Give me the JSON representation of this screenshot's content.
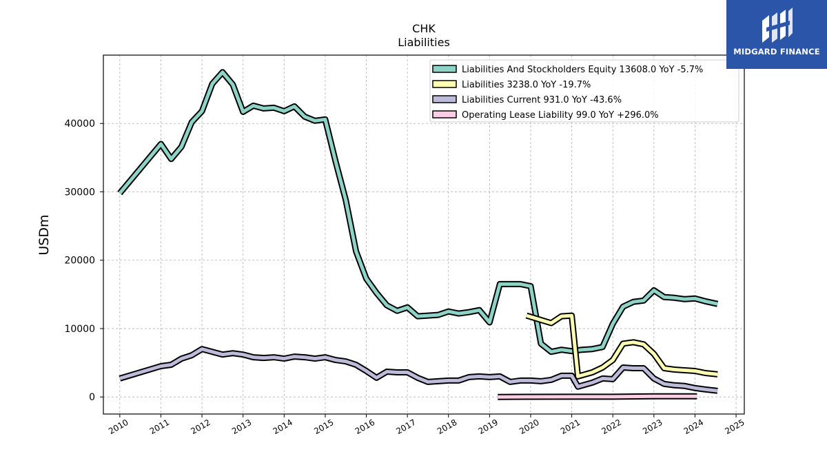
{
  "brand": {
    "name": "MIDGARD FINANCE",
    "bg_color": "#2a55a8"
  },
  "chart_data": {
    "type": "line",
    "title": "CHK",
    "subtitle": "Liabilities",
    "xlabel": "",
    "ylabel": "USDm",
    "xlim": [
      2009.6,
      2025.2
    ],
    "ylim": [
      -2500,
      50000
    ],
    "x_ticks": [
      2010,
      2011,
      2012,
      2013,
      2014,
      2015,
      2016,
      2017,
      2018,
      2019,
      2020,
      2021,
      2022,
      2023,
      2024,
      2025
    ],
    "y_ticks": [
      0,
      10000,
      20000,
      30000,
      40000
    ],
    "grid": true,
    "legend_position": "top-right",
    "series": [
      {
        "name": "Liabilities And Stockholders Equity  13608.0 YoY -5.7%",
        "color": "#8dd3c7",
        "points": [
          [
            2010.0,
            29800
          ],
          [
            2011.0,
            37000
          ],
          [
            2011.25,
            34800
          ],
          [
            2011.5,
            36600
          ],
          [
            2011.75,
            40200
          ],
          [
            2012.0,
            41800
          ],
          [
            2012.25,
            45800
          ],
          [
            2012.5,
            47500
          ],
          [
            2012.75,
            45700
          ],
          [
            2013.0,
            41700
          ],
          [
            2013.25,
            42600
          ],
          [
            2013.5,
            42200
          ],
          [
            2013.75,
            42300
          ],
          [
            2014.0,
            41800
          ],
          [
            2014.25,
            42500
          ],
          [
            2014.5,
            41000
          ],
          [
            2014.75,
            40400
          ],
          [
            2015.0,
            40600
          ],
          [
            2015.25,
            34500
          ],
          [
            2015.5,
            28800
          ],
          [
            2015.75,
            21300
          ],
          [
            2016.0,
            17300
          ],
          [
            2016.25,
            15200
          ],
          [
            2016.5,
            13400
          ],
          [
            2016.75,
            12600
          ],
          [
            2017.0,
            13100
          ],
          [
            2017.25,
            11800
          ],
          [
            2017.5,
            11900
          ],
          [
            2017.75,
            12000
          ],
          [
            2018.0,
            12500
          ],
          [
            2018.25,
            12200
          ],
          [
            2018.5,
            12400
          ],
          [
            2018.75,
            12700
          ],
          [
            2019.0,
            10900
          ],
          [
            2019.25,
            16500
          ],
          [
            2019.5,
            16500
          ],
          [
            2019.75,
            16500
          ],
          [
            2020.0,
            16200
          ],
          [
            2020.25,
            7800
          ],
          [
            2020.5,
            6600
          ],
          [
            2020.75,
            6900
          ],
          [
            2021.0,
            6700
          ],
          [
            2021.25,
            6900
          ],
          [
            2021.5,
            7000
          ],
          [
            2021.75,
            7300
          ],
          [
            2022.0,
            10700
          ],
          [
            2022.25,
            13200
          ],
          [
            2022.5,
            13900
          ],
          [
            2022.75,
            14100
          ],
          [
            2023.0,
            15600
          ],
          [
            2023.25,
            14600
          ],
          [
            2023.5,
            14500
          ],
          [
            2023.75,
            14300
          ],
          [
            2024.0,
            14400
          ],
          [
            2024.25,
            14000
          ],
          [
            2024.55,
            13600
          ]
        ]
      },
      {
        "name": "Liabilities  3238.0 YoY -19.7%",
        "color": "#ffffb3",
        "points": [
          [
            2019.9,
            11900
          ],
          [
            2020.5,
            10800
          ],
          [
            2020.75,
            11800
          ],
          [
            2021.0,
            11900
          ],
          [
            2021.15,
            3000
          ],
          [
            2021.5,
            3600
          ],
          [
            2021.75,
            4300
          ],
          [
            2022.0,
            5400
          ],
          [
            2022.25,
            7800
          ],
          [
            2022.5,
            8000
          ],
          [
            2022.75,
            7700
          ],
          [
            2023.0,
            6300
          ],
          [
            2023.25,
            4200
          ],
          [
            2023.5,
            4000
          ],
          [
            2023.75,
            3900
          ],
          [
            2024.0,
            3800
          ],
          [
            2024.25,
            3500
          ],
          [
            2024.55,
            3300
          ]
        ]
      },
      {
        "name": "Liabilities Current  931.0 YoY -43.6%",
        "color": "#bebada",
        "points": [
          [
            2010.0,
            2700
          ],
          [
            2011.0,
            4500
          ],
          [
            2011.25,
            4700
          ],
          [
            2011.5,
            5600
          ],
          [
            2011.75,
            6100
          ],
          [
            2012.0,
            7000
          ],
          [
            2012.25,
            6600
          ],
          [
            2012.5,
            6200
          ],
          [
            2012.75,
            6400
          ],
          [
            2013.0,
            6200
          ],
          [
            2013.25,
            5800
          ],
          [
            2013.5,
            5700
          ],
          [
            2013.75,
            5800
          ],
          [
            2014.0,
            5600
          ],
          [
            2014.25,
            5900
          ],
          [
            2014.5,
            5800
          ],
          [
            2014.75,
            5600
          ],
          [
            2015.0,
            5800
          ],
          [
            2015.25,
            5400
          ],
          [
            2015.5,
            5200
          ],
          [
            2015.75,
            4700
          ],
          [
            2016.0,
            3800
          ],
          [
            2016.25,
            2800
          ],
          [
            2016.5,
            3700
          ],
          [
            2016.75,
            3600
          ],
          [
            2017.0,
            3600
          ],
          [
            2017.25,
            2800
          ],
          [
            2017.5,
            2200
          ],
          [
            2017.75,
            2300
          ],
          [
            2018.0,
            2400
          ],
          [
            2018.25,
            2400
          ],
          [
            2018.5,
            2900
          ],
          [
            2018.75,
            3000
          ],
          [
            2019.0,
            2900
          ],
          [
            2019.25,
            3000
          ],
          [
            2019.5,
            2200
          ],
          [
            2019.75,
            2400
          ],
          [
            2020.0,
            2400
          ],
          [
            2020.25,
            2300
          ],
          [
            2020.5,
            2500
          ],
          [
            2020.75,
            3100
          ],
          [
            2021.0,
            3100
          ],
          [
            2021.15,
            1500
          ],
          [
            2021.5,
            2100
          ],
          [
            2021.75,
            2700
          ],
          [
            2022.0,
            2600
          ],
          [
            2022.25,
            4300
          ],
          [
            2022.5,
            4200
          ],
          [
            2022.75,
            4200
          ],
          [
            2023.0,
            2700
          ],
          [
            2023.25,
            1900
          ],
          [
            2023.5,
            1700
          ],
          [
            2023.75,
            1600
          ],
          [
            2024.0,
            1300
          ],
          [
            2024.25,
            1100
          ],
          [
            2024.55,
            900
          ]
        ]
      },
      {
        "name": "Operating Lease Liability  99.0 YoY +296.0%",
        "color": "#fccde5",
        "points": [
          [
            2019.2,
            0
          ],
          [
            2020.0,
            20
          ],
          [
            2021.0,
            30
          ],
          [
            2022.0,
            30
          ],
          [
            2023.0,
            100
          ],
          [
            2024.05,
            100
          ]
        ]
      }
    ]
  }
}
